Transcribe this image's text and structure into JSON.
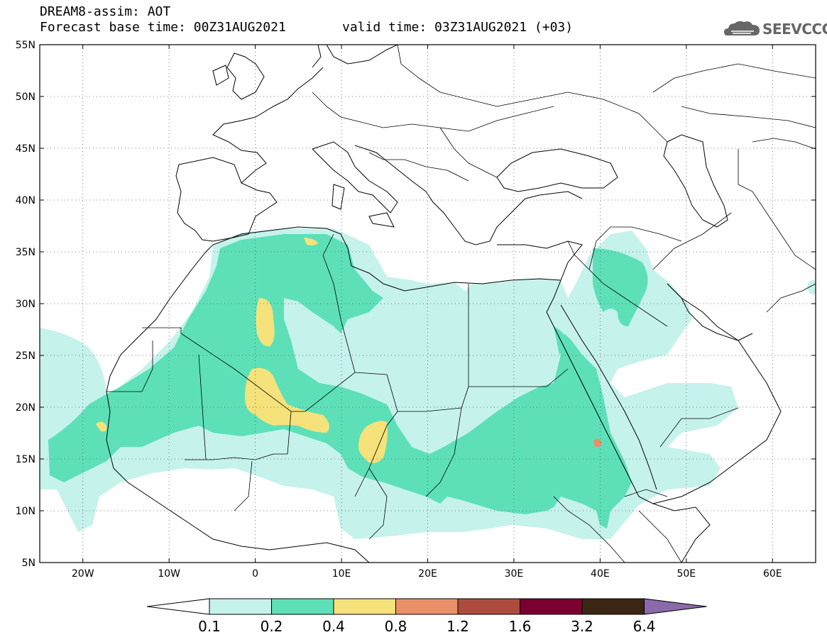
{
  "header": {
    "title": "DREAM8-assim: AOT",
    "base_time": "Forecast base time: 00Z31AUG2021",
    "valid_time": "valid time: 03Z31AUG2021 (+03)",
    "logo_text": "SEEVCCC"
  },
  "map": {
    "lat_labels": [
      "55N",
      "50N",
      "45N",
      "40N",
      "35N",
      "30N",
      "25N",
      "20N",
      "15N",
      "10N",
      "5N"
    ],
    "lon_labels": [
      "20W",
      "10W",
      "0",
      "10E",
      "20E",
      "30E",
      "40E",
      "50E",
      "60E"
    ],
    "lat_range": [
      5,
      55
    ],
    "lon_range": [
      -25,
      65
    ]
  },
  "legend": {
    "thresholds": [
      "0.1",
      "0.2",
      "0.4",
      "0.8",
      "1.2",
      "1.6",
      "3.2",
      "6.4"
    ],
    "colors": [
      "#ffffff",
      "#c6f2ec",
      "#5de0b8",
      "#f5e27a",
      "#ea9068",
      "#ad4c3e",
      "#7a0030",
      "#3b2614",
      "#8a6aa8"
    ]
  },
  "colors": {
    "c02": "#c6f2ec",
    "c04": "#5de0b8",
    "c08": "#f5e27a",
    "c12": "#ea9068"
  }
}
